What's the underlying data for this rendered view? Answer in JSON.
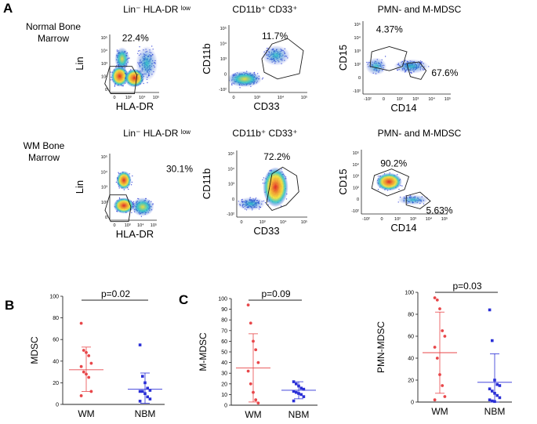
{
  "panel_letters": [
    "A",
    "B",
    "C"
  ],
  "row_labels": [
    {
      "line1": "Normal Bone",
      "line2": "Marrow"
    },
    {
      "line1": "WM Bone",
      "line2": "Marrow"
    }
  ],
  "colors": {
    "wm": "#e8474a",
    "nbm": "#2a2fd6",
    "gate": "#1a1a1a",
    "density_low": "#2b3bd6",
    "density_mid": "#36c8c8",
    "density_high": "#f4e23a",
    "density_peak": "#e4281f"
  },
  "flow_plots": [
    {
      "row": 0,
      "col": 0,
      "title": "Lin⁻ HLA-DR ˡᵒʷ",
      "xlabel": "HLA-DR",
      "ylabel": "Lin",
      "gates": [
        {
          "label": "22.4%"
        }
      ]
    },
    {
      "row": 0,
      "col": 1,
      "title": "CD11b⁺ CD33⁺",
      "xlabel": "CD33",
      "ylabel": "CD11b",
      "gates": [
        {
          "label": "11.7%"
        }
      ]
    },
    {
      "row": 0,
      "col": 2,
      "title": "PMN- and M-MDSC",
      "xlabel": "CD14",
      "ylabel": "CD15",
      "gates": [
        {
          "label": "4.37%"
        },
        {
          "label": "67.6%"
        }
      ]
    },
    {
      "row": 1,
      "col": 0,
      "title": "Lin⁻ HLA-DR ˡᵒʷ",
      "xlabel": "HLA-DR",
      "ylabel": "Lin",
      "gates": [
        {
          "label": "30.1%"
        }
      ]
    },
    {
      "row": 1,
      "col": 1,
      "title": "CD11b⁺ CD33⁺",
      "xlabel": "CD33",
      "ylabel": "CD11b",
      "gates": [
        {
          "label": "72.2%"
        }
      ]
    },
    {
      "row": 1,
      "col": 2,
      "title": "PMN- and M-MDSC",
      "xlabel": "CD14",
      "ylabel": "CD15",
      "gates": [
        {
          "label": "90.2%"
        },
        {
          "label": "5.63%"
        }
      ]
    }
  ],
  "flow_tick_labels": {
    "lin_y": [
      "10⁵",
      "10⁴",
      "10³",
      "10²",
      "0"
    ],
    "hla_x": [
      "0",
      "10³",
      "10⁴",
      "10⁵"
    ],
    "cd11b_y": [
      "10⁵",
      "10⁴",
      "10³",
      "0",
      "-10²"
    ],
    "cd33_x": [
      "0",
      "10³",
      "10⁴",
      "10⁵"
    ],
    "cd15_y": [
      "10⁵",
      "10⁴",
      "10³",
      "10²",
      "0",
      "-10²"
    ],
    "cd14_x": [
      "-10²",
      "0",
      "10²",
      "10³",
      "10⁴",
      "10⁵"
    ]
  },
  "chart_data": [
    {
      "type": "scatter",
      "panel": "B",
      "title": "p=0.02",
      "xlabel": "",
      "ylabel": "MDSC",
      "ylim": [
        0,
        100
      ],
      "yticks": [
        0,
        20,
        40,
        60,
        80,
        100
      ],
      "categories": [
        "WM",
        "NBM"
      ],
      "series": [
        {
          "name": "WM",
          "values": [
            75,
            50,
            48,
            45,
            38,
            35,
            30,
            28,
            25,
            12,
            8
          ],
          "mean": 32,
          "sd_low": 12,
          "sd_high": 53
        },
        {
          "name": "NBM",
          "values": [
            55,
            26,
            20,
            15,
            13,
            12,
            12,
            10,
            7,
            5,
            3
          ],
          "mean": 14,
          "sd_low": 1,
          "sd_high": 29
        }
      ]
    },
    {
      "type": "scatter",
      "panel": "C",
      "title": "p=0.09",
      "xlabel": "",
      "ylabel": "M-MDSC",
      "ylim": [
        0,
        100
      ],
      "yticks": [
        0,
        10,
        20,
        30,
        40,
        50,
        60,
        70,
        80,
        90,
        100
      ],
      "categories": [
        "WM",
        "NBM"
      ],
      "series": [
        {
          "name": "WM",
          "values": [
            94,
            77,
            60,
            52,
            40,
            32,
            20,
            12,
            5,
            2
          ],
          "mean": 35,
          "sd_low": 3,
          "sd_high": 67
        },
        {
          "name": "NBM",
          "values": [
            22,
            20,
            18,
            16,
            15,
            13,
            12,
            11,
            10,
            8,
            4
          ],
          "mean": 14,
          "sd_low": 6,
          "sd_high": 22
        }
      ]
    },
    {
      "type": "scatter",
      "panel": "",
      "title": "p=0.03",
      "xlabel": "",
      "ylabel": "PMN-MDSC",
      "ylim": [
        0,
        100
      ],
      "yticks": [
        0,
        20,
        40,
        60,
        80,
        100
      ],
      "categories": [
        "WM",
        "NBM"
      ],
      "series": [
        {
          "name": "WM",
          "values": [
            95,
            93,
            85,
            65,
            60,
            50,
            40,
            25,
            15,
            5,
            2
          ],
          "mean": 45,
          "sd_low": 8,
          "sd_high": 82
        },
        {
          "name": "NBM",
          "values": [
            84,
            56,
            20,
            16,
            15,
            12,
            10,
            8,
            6,
            4,
            2,
            1,
            0.5
          ],
          "mean": 18,
          "sd_low": 0,
          "sd_high": 44
        }
      ]
    }
  ]
}
